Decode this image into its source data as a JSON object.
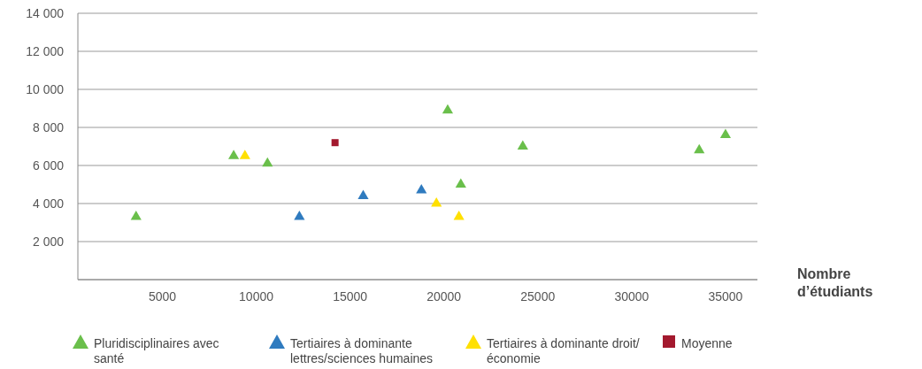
{
  "chart_data": {
    "type": "scatter",
    "xlabel": "Nombre d’étudiants",
    "marker": "triangle",
    "grid": "y",
    "legend": "bottom",
    "xlim": [
      500,
      36700
    ],
    "xticks": [
      5000,
      10000,
      15000,
      20000,
      25000,
      30000,
      35000
    ],
    "ylim": [
      0,
      14000
    ],
    "yticks": [
      {
        "value": 2000,
        "label": "2 000"
      },
      {
        "value": 4000,
        "label": "4 000"
      },
      {
        "value": 6000,
        "label": "6 000"
      },
      {
        "value": 8000,
        "label": "8 000"
      },
      {
        "value": 10000,
        "label": "10 000"
      },
      {
        "value": 12000,
        "label": "12 000"
      },
      {
        "value": 14000,
        "label": "14 000"
      }
    ],
    "series": [
      {
        "name": "Pluridisciplinaires avec santé",
        "color": "#6abf4b",
        "x": [
          3600,
          8800,
          10600,
          20200,
          20900,
          24200,
          33600,
          35000
        ],
        "values": [
          3300,
          6500,
          6100,
          8900,
          5000,
          7000,
          6800,
          7600
        ]
      },
      {
        "name": "Tertiaires à dominante lettres/sciences humaines",
        "color": "#2f7bbf",
        "x": [
          12300,
          15700,
          18800
        ],
        "values": [
          3300,
          4400,
          4700
        ]
      },
      {
        "name": "Tertiaires à dominante droit/économie",
        "color": "#ffe000",
        "x": [
          9400,
          19600,
          20800
        ],
        "values": [
          6500,
          4000,
          3300
        ]
      },
      {
        "name": "Moyenne",
        "color": "#a3192e",
        "marker": "square",
        "x": [
          14200
        ],
        "values": [
          7200
        ]
      }
    ]
  }
}
